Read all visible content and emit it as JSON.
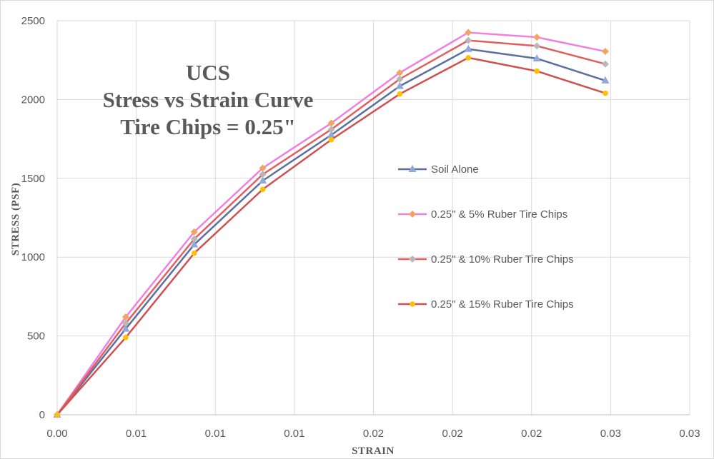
{
  "chart_data": {
    "type": "line",
    "title_lines": [
      "UCS",
      "Stress vs Strain Curve",
      "Tire Chips = 0.25\""
    ],
    "xlabel": "STRAIN",
    "ylabel": "STRESS (PSF)",
    "xlim": [
      0,
      0.03
    ],
    "ylim": [
      0,
      2500
    ],
    "x_tick_labels": [
      "0.00",
      "0.01",
      "0.01",
      "0.01",
      "0.02",
      "0.02",
      "0.02",
      "0.03",
      "0.03"
    ],
    "y_tick_labels": [
      "0",
      "500",
      "1000",
      "1500",
      "2000",
      "2500"
    ],
    "grid": true,
    "legend_position": "center-right",
    "x": [
      0,
      0.00325,
      0.0065,
      0.00975,
      0.013,
      0.01625,
      0.0195,
      0.02275,
      0.026
    ],
    "series": [
      {
        "name": "Soil Alone",
        "color": "#5b6fa0",
        "marker": "triangle",
        "marker_color": "#8ea9db",
        "values": [
          0,
          545,
          1080,
          1485,
          1775,
          2085,
          2320,
          2260,
          2120
        ]
      },
      {
        "name": "0.25\" & 5% Ruber Tire Chips",
        "color": "#f080e0",
        "marker": "diamond",
        "marker_color": "#f4a460",
        "values": [
          0,
          620,
          1160,
          1565,
          1850,
          2170,
          2425,
          2395,
          2305
        ]
      },
      {
        "name": "0.25\" & 10% Ruber Tire Chips",
        "color": "#e06060",
        "marker": "diamond",
        "marker_color": "#b8b8b8",
        "values": [
          0,
          580,
          1115,
          1525,
          1810,
          2130,
          2375,
          2340,
          2225
        ]
      },
      {
        "name": "0.25\" & 15% Ruber Tire Chips",
        "color": "#d05050",
        "marker": "circle",
        "marker_color": "#ffc000",
        "values": [
          0,
          490,
          1025,
          1430,
          1745,
          2035,
          2265,
          2180,
          2040
        ]
      }
    ]
  }
}
